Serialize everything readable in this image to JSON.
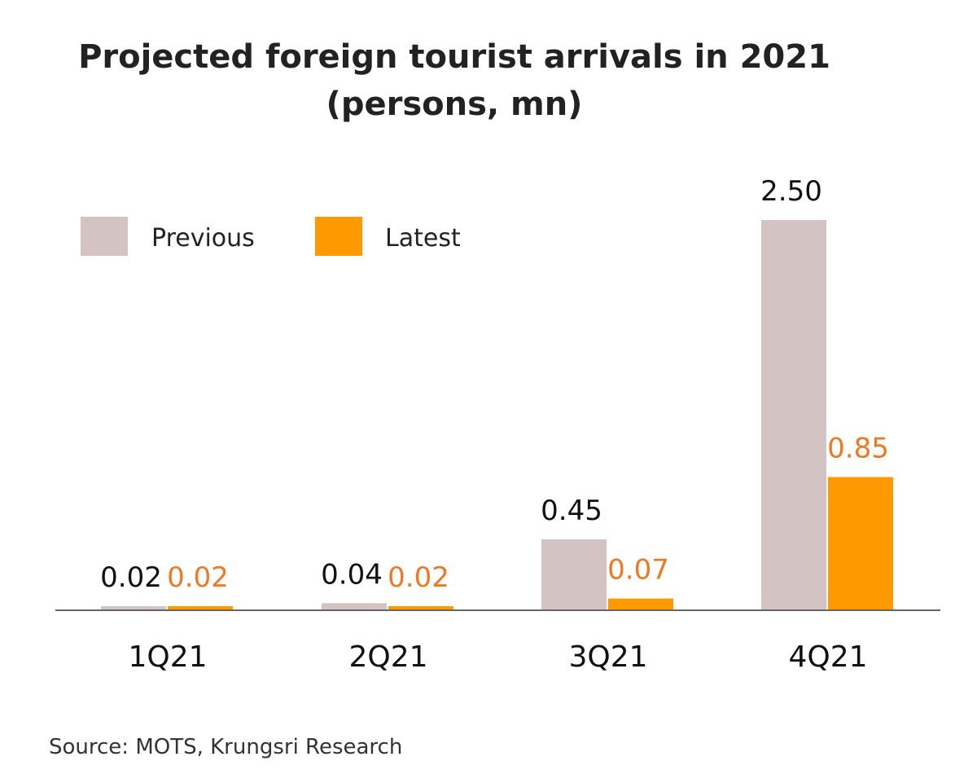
{
  "chart_data": {
    "type": "bar",
    "title": "Projected foreign tourist arrivals in 2021",
    "subtitle": "(persons, mn)",
    "categories": [
      "1Q21",
      "2Q21",
      "3Q21",
      "4Q21"
    ],
    "series": [
      {
        "name": "Previous",
        "values": [
          0.02,
          0.04,
          0.45,
          2.5
        ],
        "labels": [
          "0.02",
          "0.04",
          "0.45",
          "2.50"
        ],
        "color": "#D4C3C3",
        "label_color": "#111111"
      },
      {
        "name": "Latest",
        "values": [
          0.02,
          0.02,
          0.07,
          0.85
        ],
        "labels": [
          "0.02",
          "0.02",
          "0.07",
          "0.85"
        ],
        "color": "#FF9900",
        "label_color": "#F07820"
      }
    ],
    "ylim": [
      0,
      2.5
    ],
    "grid": false,
    "legend_position": "top-left",
    "xlabel": "",
    "ylabel": ""
  },
  "source": "Source: MOTS, Krungsri Research"
}
